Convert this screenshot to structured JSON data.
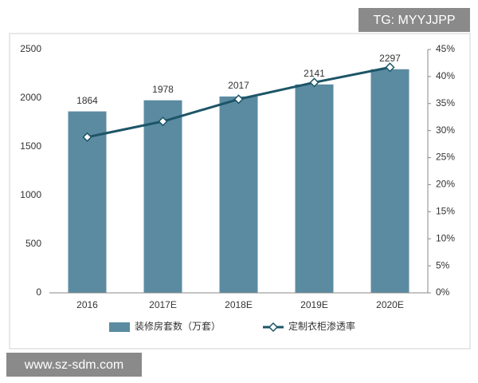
{
  "chart_data": {
    "type": "combo",
    "categories": [
      "2016",
      "2017E",
      "2018E",
      "2019E",
      "2020E"
    ],
    "series": [
      {
        "name": "装修房套数（万套）",
        "type": "bar",
        "color": "#5b8ba1",
        "values": [
          1864,
          1978,
          2017,
          2141,
          2297
        ]
      },
      {
        "name": "定制衣柜渗透率",
        "type": "line",
        "axis": "y2",
        "color": "#1d5567",
        "values": [
          28.8,
          31.7,
          35.8,
          38.9,
          41.7
        ]
      }
    ],
    "ylim": [
      0,
      2500
    ],
    "yticks": [
      0,
      500,
      1000,
      1500,
      2000,
      2500
    ],
    "y2lim": [
      0,
      45
    ],
    "y2ticks": [
      {
        "value": 0,
        "label": "0%"
      },
      {
        "value": 5,
        "label": "5%"
      },
      {
        "value": 10,
        "label": "10%"
      },
      {
        "value": 15,
        "label": "15%"
      },
      {
        "value": 20,
        "label": "20%"
      },
      {
        "value": 25,
        "label": "25%"
      },
      {
        "value": 30,
        "label": "30%"
      },
      {
        "value": 35,
        "label": "35%"
      },
      {
        "value": 40,
        "label": "40%"
      },
      {
        "value": 45,
        "label": "45%"
      }
    ],
    "grid": false,
    "legend": "bottom",
    "annotations": [
      "TG: MYYJJPP",
      "www.sz-sdm.com"
    ]
  }
}
